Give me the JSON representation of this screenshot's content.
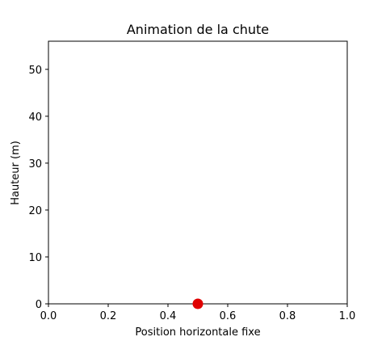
{
  "chart_data": {
    "type": "scatter",
    "title": "Animation de la chute",
    "xlabel": "Position horizontale fixe",
    "ylabel": "Hauteur (m)",
    "xlim": [
      0,
      1
    ],
    "ylim": [
      0,
      56
    ],
    "xticks": [
      {
        "value": 0.0,
        "label": "0.0"
      },
      {
        "value": 0.2,
        "label": "0.2"
      },
      {
        "value": 0.4,
        "label": "0.4"
      },
      {
        "value": 0.6,
        "label": "0.6"
      },
      {
        "value": 0.8,
        "label": "0.8"
      },
      {
        "value": 1.0,
        "label": "1.0"
      }
    ],
    "yticks": [
      {
        "value": 0,
        "label": "0"
      },
      {
        "value": 10,
        "label": "10"
      },
      {
        "value": 20,
        "label": "20"
      },
      {
        "value": 30,
        "label": "30"
      },
      {
        "value": 40,
        "label": "40"
      },
      {
        "value": 50,
        "label": "50"
      }
    ],
    "grid": false,
    "series": [
      {
        "x": [
          0.5
        ],
        "y": [
          0
        ],
        "color": "#e00000"
      }
    ]
  }
}
